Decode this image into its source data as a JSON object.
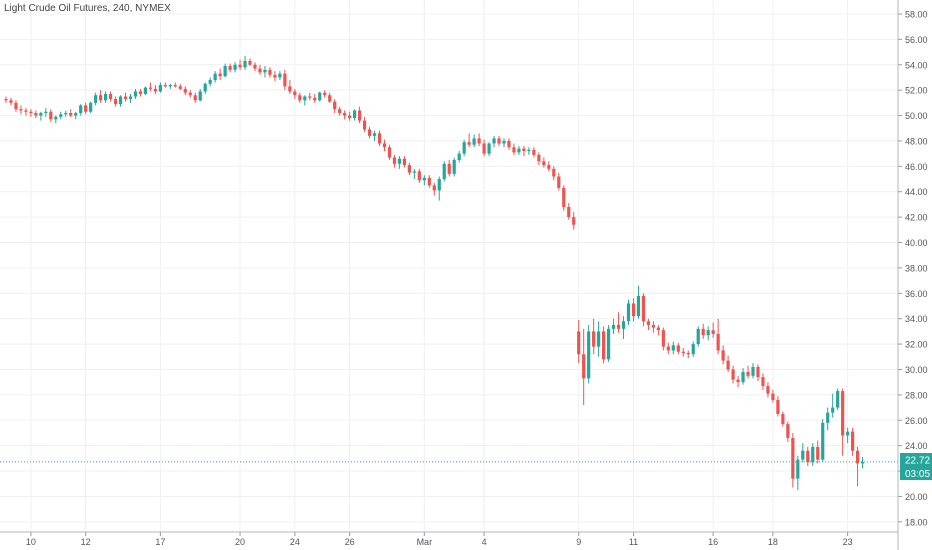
{
  "chart_data": {
    "type": "candlestick",
    "title": "Light Crude Oil Futures, 240, NYMEX",
    "x_tick_labels": [
      "10",
      "12",
      "17",
      "20",
      "24",
      "26",
      "Mar",
      "4",
      "9",
      "11",
      "16",
      "18",
      "23"
    ],
    "y_ticks": [
      18,
      20,
      22,
      24,
      26,
      28,
      30,
      32,
      34,
      36,
      38,
      40,
      42,
      44,
      46,
      48,
      50,
      52,
      54,
      56,
      58
    ],
    "ylim": [
      17.2,
      59.1
    ],
    "grid": true,
    "current_price": 22.72,
    "current_price_label": "22.72",
    "countdown_label": "03:05",
    "colors": {
      "up": "#26a69a",
      "down": "#ef5350",
      "grid": "#eef0f3",
      "axis_text": "#555555",
      "price_line": "#26a69a"
    },
    "candles": [
      [
        51.3,
        51.5,
        51.0,
        51.2
      ],
      [
        51.2,
        51.4,
        50.8,
        51.0
      ],
      [
        51.0,
        51.2,
        50.3,
        50.5
      ],
      [
        50.5,
        50.8,
        50.1,
        50.4
      ],
      [
        50.4,
        50.6,
        50.0,
        50.3
      ],
      [
        50.3,
        50.5,
        49.9,
        50.2
      ],
      [
        50.2,
        50.4,
        49.8,
        50.0
      ],
      [
        50.0,
        50.3,
        49.6,
        50.2
      ],
      [
        50.2,
        50.6,
        49.9,
        50.3
      ],
      [
        50.3,
        50.5,
        49.5,
        49.7
      ],
      [
        49.7,
        50.0,
        49.4,
        49.9
      ],
      [
        49.9,
        50.3,
        49.7,
        50.1
      ],
      [
        50.1,
        50.4,
        49.9,
        50.2
      ],
      [
        50.2,
        50.5,
        49.9,
        50.0
      ],
      [
        50.0,
        50.3,
        49.7,
        50.2
      ],
      [
        50.2,
        50.9,
        50.0,
        50.8
      ],
      [
        50.8,
        51.0,
        50.1,
        50.3
      ],
      [
        50.3,
        51.1,
        50.2,
        51.0
      ],
      [
        51.0,
        51.8,
        50.8,
        51.6
      ],
      [
        51.6,
        52.0,
        51.0,
        51.2
      ],
      [
        51.2,
        51.9,
        51.0,
        51.7
      ],
      [
        51.7,
        51.9,
        51.1,
        51.3
      ],
      [
        51.3,
        51.5,
        50.7,
        50.9
      ],
      [
        50.9,
        51.6,
        50.7,
        51.5
      ],
      [
        51.5,
        51.8,
        51.1,
        51.3
      ],
      [
        51.3,
        51.7,
        51.0,
        51.5
      ],
      [
        51.5,
        52.1,
        51.3,
        51.9
      ],
      [
        51.9,
        52.1,
        51.5,
        51.7
      ],
      [
        51.7,
        52.3,
        51.6,
        52.2
      ],
      [
        52.2,
        52.6,
        51.9,
        52.1
      ],
      [
        52.1,
        52.4,
        51.7,
        51.9
      ],
      [
        51.9,
        52.6,
        51.8,
        52.4
      ],
      [
        52.4,
        52.6,
        52.2,
        52.3
      ],
      [
        52.3,
        52.5,
        52.1,
        52.4
      ],
      [
        52.4,
        52.6,
        52.2,
        52.3
      ],
      [
        52.3,
        52.5,
        52.0,
        52.1
      ],
      [
        52.1,
        52.3,
        51.6,
        51.8
      ],
      [
        51.8,
        52.0,
        51.4,
        51.6
      ],
      [
        51.6,
        51.8,
        51.0,
        51.2
      ],
      [
        51.2,
        52.1,
        51.1,
        51.9
      ],
      [
        51.9,
        52.6,
        51.7,
        52.5
      ],
      [
        52.5,
        53.0,
        52.3,
        52.8
      ],
      [
        52.8,
        53.5,
        52.6,
        53.3
      ],
      [
        53.3,
        53.7,
        52.8,
        53.1
      ],
      [
        53.1,
        54.1,
        53.0,
        53.9
      ],
      [
        53.9,
        54.1,
        53.4,
        53.6
      ],
      [
        53.6,
        54.2,
        53.4,
        54.0
      ],
      [
        54.0,
        54.4,
        53.6,
        53.8
      ],
      [
        53.8,
        54.7,
        53.6,
        54.3
      ],
      [
        54.3,
        54.5,
        53.9,
        54.0
      ],
      [
        54.0,
        54.2,
        53.5,
        53.7
      ],
      [
        53.7,
        54.0,
        53.2,
        53.4
      ],
      [
        53.4,
        53.9,
        53.0,
        53.6
      ],
      [
        53.6,
        53.8,
        53.0,
        53.2
      ],
      [
        53.2,
        53.5,
        52.7,
        53.0
      ],
      [
        53.0,
        53.5,
        52.8,
        53.3
      ],
      [
        53.3,
        53.6,
        52.0,
        52.3
      ],
      [
        52.3,
        52.8,
        51.7,
        51.9
      ],
      [
        51.9,
        52.1,
        51.3,
        51.6
      ],
      [
        51.6,
        51.8,
        51.0,
        51.2
      ],
      [
        51.2,
        51.6,
        50.8,
        51.5
      ],
      [
        51.5,
        51.8,
        51.2,
        51.4
      ],
      [
        51.4,
        51.7,
        51.0,
        51.2
      ],
      [
        51.2,
        51.9,
        51.1,
        51.8
      ],
      [
        51.8,
        52.0,
        51.4,
        51.6
      ],
      [
        51.6,
        51.8,
        51.0,
        51.1
      ],
      [
        51.1,
        51.3,
        50.2,
        50.5
      ],
      [
        50.5,
        50.7,
        50.0,
        50.2
      ],
      [
        50.2,
        50.4,
        49.7,
        50.0
      ],
      [
        50.0,
        50.3,
        49.6,
        49.8
      ],
      [
        49.8,
        50.5,
        49.6,
        50.4
      ],
      [
        50.4,
        50.7,
        49.4,
        49.6
      ],
      [
        49.6,
        49.9,
        48.7,
        48.9
      ],
      [
        48.9,
        49.1,
        48.2,
        48.4
      ],
      [
        48.4,
        48.8,
        48.0,
        48.6
      ],
      [
        48.6,
        48.8,
        47.6,
        47.8
      ],
      [
        47.8,
        48.1,
        47.2,
        47.5
      ],
      [
        47.5,
        47.7,
        46.5,
        46.7
      ],
      [
        46.7,
        46.9,
        45.9,
        46.2
      ],
      [
        46.2,
        46.8,
        45.8,
        46.6
      ],
      [
        46.6,
        46.8,
        45.9,
        46.1
      ],
      [
        46.1,
        46.3,
        45.3,
        45.5
      ],
      [
        45.5,
        45.8,
        45.0,
        45.6
      ],
      [
        45.6,
        45.8,
        44.7,
        44.9
      ],
      [
        44.9,
        45.3,
        44.5,
        45.1
      ],
      [
        45.1,
        45.3,
        44.3,
        44.5
      ],
      [
        44.5,
        44.7,
        43.7,
        44.1
      ],
      [
        44.1,
        45.2,
        43.3,
        45.0
      ],
      [
        45.0,
        46.4,
        44.8,
        46.2
      ],
      [
        46.2,
        46.5,
        45.2,
        45.4
      ],
      [
        45.4,
        46.7,
        45.2,
        46.5
      ],
      [
        46.5,
        47.2,
        46.3,
        47.0
      ],
      [
        47.0,
        48.1,
        46.8,
        47.9
      ],
      [
        47.9,
        48.6,
        47.5,
        47.7
      ],
      [
        47.7,
        48.5,
        47.5,
        48.2
      ],
      [
        48.2,
        48.6,
        47.6,
        47.8
      ],
      [
        47.8,
        48.1,
        46.8,
        47.0
      ],
      [
        47.0,
        47.9,
        46.8,
        47.8
      ],
      [
        47.8,
        48.4,
        47.5,
        48.2
      ],
      [
        48.2,
        48.4,
        47.6,
        47.8
      ],
      [
        47.8,
        48.2,
        47.5,
        48.0
      ],
      [
        48.0,
        48.2,
        47.3,
        47.5
      ],
      [
        47.5,
        47.8,
        46.9,
        47.1
      ],
      [
        47.1,
        47.6,
        46.9,
        47.4
      ],
      [
        47.4,
        47.6,
        46.8,
        47.2
      ],
      [
        47.2,
        47.5,
        46.9,
        47.3
      ],
      [
        47.3,
        47.5,
        46.7,
        46.9
      ],
      [
        46.9,
        47.1,
        46.1,
        46.4
      ],
      [
        46.4,
        46.7,
        45.9,
        46.1
      ],
      [
        46.1,
        46.4,
        45.6,
        45.8
      ],
      [
        45.8,
        46.0,
        44.9,
        45.2
      ],
      [
        45.2,
        45.5,
        44.1,
        44.3
      ],
      [
        44.3,
        44.5,
        42.5,
        42.8
      ],
      [
        42.8,
        43.1,
        41.8,
        42.0
      ],
      [
        42.0,
        42.4,
        41.0,
        41.4
      ],
      [
        33.0,
        33.9,
        30.5,
        31.2
      ],
      [
        31.2,
        33.2,
        27.2,
        29.3
      ],
      [
        29.3,
        33.5,
        28.9,
        33.0
      ],
      [
        33.0,
        34.0,
        31.2,
        31.8
      ],
      [
        31.8,
        33.8,
        31.0,
        33.0
      ],
      [
        33.0,
        33.4,
        30.5,
        30.8
      ],
      [
        30.8,
        33.5,
        30.6,
        33.2
      ],
      [
        33.2,
        34.0,
        32.8,
        33.5
      ],
      [
        33.5,
        34.5,
        32.9,
        33.2
      ],
      [
        33.2,
        34.2,
        32.4,
        33.8
      ],
      [
        33.8,
        35.5,
        33.5,
        35.2
      ],
      [
        35.2,
        35.6,
        33.8,
        34.2
      ],
      [
        34.2,
        36.6,
        34.0,
        35.8
      ],
      [
        35.8,
        36.0,
        33.4,
        33.8
      ],
      [
        33.8,
        34.0,
        33.1,
        33.5
      ],
      [
        33.5,
        33.8,
        32.9,
        33.3
      ],
      [
        33.3,
        33.5,
        32.7,
        33.1
      ],
      [
        33.1,
        33.3,
        31.5,
        31.8
      ],
      [
        31.8,
        32.1,
        31.2,
        31.5
      ],
      [
        31.5,
        32.2,
        31.2,
        31.9
      ],
      [
        31.9,
        32.1,
        31.2,
        31.4
      ],
      [
        31.4,
        31.7,
        31.0,
        31.3
      ],
      [
        31.3,
        31.5,
        30.9,
        31.2
      ],
      [
        31.2,
        32.2,
        31.0,
        32.0
      ],
      [
        32.0,
        33.4,
        31.8,
        33.2
      ],
      [
        33.2,
        33.6,
        32.4,
        32.7
      ],
      [
        32.7,
        33.4,
        32.3,
        33.1
      ],
      [
        33.1,
        33.7,
        32.5,
        32.8
      ],
      [
        32.8,
        34.0,
        31.2,
        31.5
      ],
      [
        31.5,
        31.9,
        30.4,
        30.7
      ],
      [
        30.7,
        31.1,
        29.8,
        30.0
      ],
      [
        30.0,
        30.3,
        28.9,
        29.2
      ],
      [
        29.2,
        29.5,
        28.6,
        29.0
      ],
      [
        29.0,
        30.1,
        28.8,
        29.8
      ],
      [
        29.8,
        30.3,
        29.3,
        29.5
      ],
      [
        29.5,
        30.5,
        29.3,
        30.2
      ],
      [
        30.2,
        30.4,
        29.1,
        29.4
      ],
      [
        29.4,
        29.7,
        28.4,
        28.7
      ],
      [
        28.7,
        29.0,
        27.8,
        28.1
      ],
      [
        28.1,
        28.4,
        27.4,
        27.6
      ],
      [
        27.6,
        27.9,
        26.3,
        26.5
      ],
      [
        26.5,
        26.7,
        25.5,
        25.7
      ],
      [
        25.7,
        25.9,
        24.3,
        24.6
      ],
      [
        24.6,
        25.0,
        20.7,
        21.4
      ],
      [
        21.4,
        23.2,
        20.5,
        22.9
      ],
      [
        22.9,
        24.2,
        22.7,
        23.6
      ],
      [
        23.6,
        23.9,
        22.4,
        22.7
      ],
      [
        22.7,
        24.2,
        22.4,
        23.9
      ],
      [
        23.9,
        24.4,
        22.6,
        22.9
      ],
      [
        22.9,
        26.1,
        22.7,
        25.8
      ],
      [
        25.8,
        27.0,
        25.2,
        26.6
      ],
      [
        26.6,
        28.1,
        26.2,
        27.0
      ],
      [
        27.0,
        28.5,
        26.8,
        28.3
      ],
      [
        28.3,
        28.5,
        23.2,
        24.8
      ],
      [
        24.8,
        25.4,
        24.2,
        25.1
      ],
      [
        25.1,
        25.4,
        23.2,
        23.6
      ],
      [
        23.6,
        23.9,
        20.8,
        22.6
      ],
      [
        22.6,
        23.1,
        22.2,
        22.72
      ]
    ],
    "x_tick_candle_index": [
      5,
      16,
      31,
      47,
      58,
      69,
      84,
      96,
      115,
      126,
      142,
      154,
      169
    ]
  }
}
